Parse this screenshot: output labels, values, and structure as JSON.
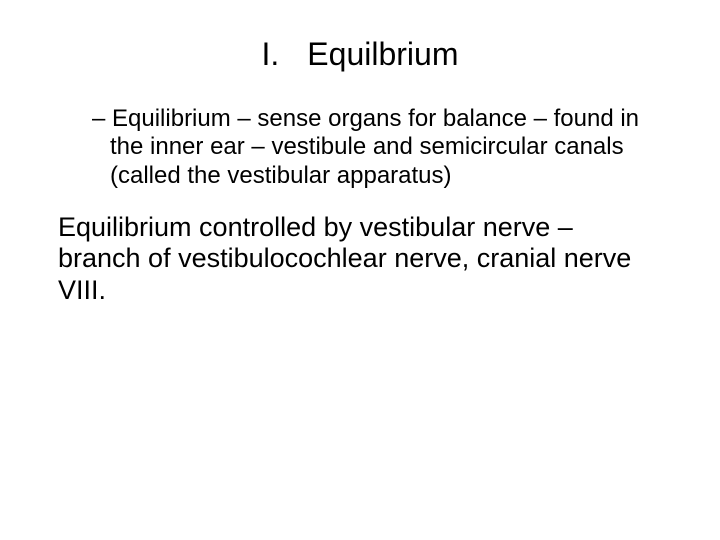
{
  "slide": {
    "title_number": "I.",
    "title_text": "Equilbrium",
    "bullet": "– Equilibrium – sense organs for balance – found in the inner ear – vestibule and semicircular canals (called the vestibular apparatus)",
    "body": "Equilibrium controlled by vestibular nerve – branch of vestibulocochlear nerve, cranial nerve VIII."
  },
  "style": {
    "background_color": "#ffffff",
    "text_color": "#000000",
    "font_family": "Arial",
    "title_fontsize_pt": 24,
    "bullet_fontsize_pt": 18,
    "body_fontsize_pt": 20
  }
}
